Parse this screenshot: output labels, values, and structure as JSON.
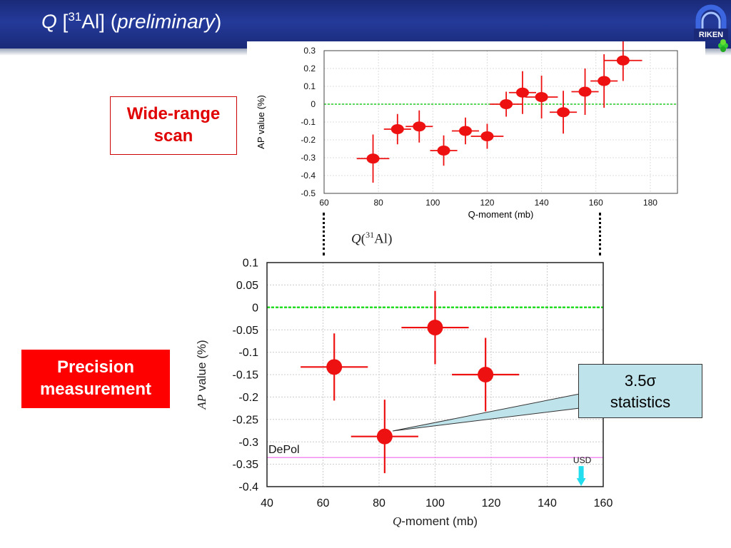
{
  "header": {
    "title_q": "Q",
    "title_bracket_open": " [",
    "title_mass": "31",
    "title_element": "Al] (",
    "title_prelim": "preliminary",
    "title_close": ")"
  },
  "logo": {
    "text": "RIKEN",
    "icon": "riken-logo-icon"
  },
  "labels": {
    "wide_line1": "Wide-range",
    "wide_line2": "scan",
    "prec_line1": "Precision",
    "prec_line2": "measurement"
  },
  "callout": {
    "line1": "3.5σ",
    "line2": "statistics"
  },
  "q_label": {
    "q": "Q",
    "mass": "31",
    "element": "Al)"
  },
  "colors": {
    "header": "#1f3088",
    "points": "#ee1111",
    "zero_line": "#22cc22",
    "depol_line": "#ee66ee",
    "usd_arrow": "#22ddee",
    "callout_fill": "#bfe3ea"
  },
  "chart_data": [
    {
      "type": "scatter",
      "title": "",
      "xlabel": "Q-moment (mb)",
      "ylabel": "AP value (%)",
      "xlim": [
        60,
        190
      ],
      "ylim": [
        -0.5,
        0.3
      ],
      "xticks": [
        "60",
        "80",
        "100",
        "120",
        "140",
        "160",
        "180"
      ],
      "yticks": [
        "0.3",
        "0.2",
        "0.1",
        "0",
        "-0.1",
        "-0.2",
        "-0.3",
        "-0.4",
        "-0.5"
      ],
      "grid": true,
      "reference_line": 0,
      "series": [
        {
          "points": [
            {
              "x": 78,
              "y": -0.305,
              "xerr": 6,
              "yerr": 0.135
            },
            {
              "x": 87,
              "y": -0.14,
              "xerr": 5,
              "yerr": 0.085
            },
            {
              "x": 95,
              "y": -0.125,
              "xerr": 5,
              "yerr": 0.09
            },
            {
              "x": 104,
              "y": -0.26,
              "xerr": 5,
              "yerr": 0.085
            },
            {
              "x": 112,
              "y": -0.15,
              "xerr": 5,
              "yerr": 0.075
            },
            {
              "x": 120,
              "y": -0.18,
              "xerr": 6,
              "yerr": 0.07
            },
            {
              "x": 127,
              "y": 0.0,
              "xerr": 6,
              "yerr": 0.07
            },
            {
              "x": 133,
              "y": 0.065,
              "xerr": 5,
              "yerr": 0.12
            },
            {
              "x": 140,
              "y": 0.04,
              "xerr": 6,
              "yerr": 0.12
            },
            {
              "x": 148,
              "y": -0.045,
              "xerr": 5,
              "yerr": 0.12
            },
            {
              "x": 156,
              "y": 0.07,
              "xerr": 5,
              "yerr": 0.13
            },
            {
              "x": 163,
              "y": 0.13,
              "xerr": 5,
              "yerr": 0.15
            },
            {
              "x": 170,
              "y": 0.245,
              "xerr": 7,
              "yerr": 0.115
            }
          ]
        }
      ]
    },
    {
      "type": "scatter",
      "title": "",
      "xlabel_italic": "Q",
      "xlabel": "-moment (mb)",
      "ylabel_italic": "AP",
      "ylabel": " value (%)",
      "xlim": [
        40,
        160
      ],
      "ylim": [
        -0.4,
        0.1
      ],
      "xticks": [
        "40",
        "60",
        "80",
        "100",
        "120",
        "140",
        "160"
      ],
      "yticks": [
        "0.1",
        "0.05",
        "0",
        "-0.05",
        "-0.1",
        "-0.15",
        "-0.2",
        "-0.25",
        "-0.3",
        "-0.35",
        "-0.4"
      ],
      "grid": true,
      "reference_line": 0,
      "depol_level": -0.335,
      "depol_label": "DePol",
      "usd_x": 152,
      "usd_label": "USD",
      "series": [
        {
          "points": [
            {
              "x": 64,
              "y": -0.133,
              "xerr": 12,
              "yerr": 0.075
            },
            {
              "x": 82,
              "y": -0.288,
              "xerr": 12,
              "yerr": 0.082
            },
            {
              "x": 100,
              "y": -0.045,
              "xerr": 12,
              "yerr": 0.082
            },
            {
              "x": 118,
              "y": -0.15,
              "xerr": 12,
              "yerr": 0.082
            }
          ]
        }
      ]
    }
  ]
}
